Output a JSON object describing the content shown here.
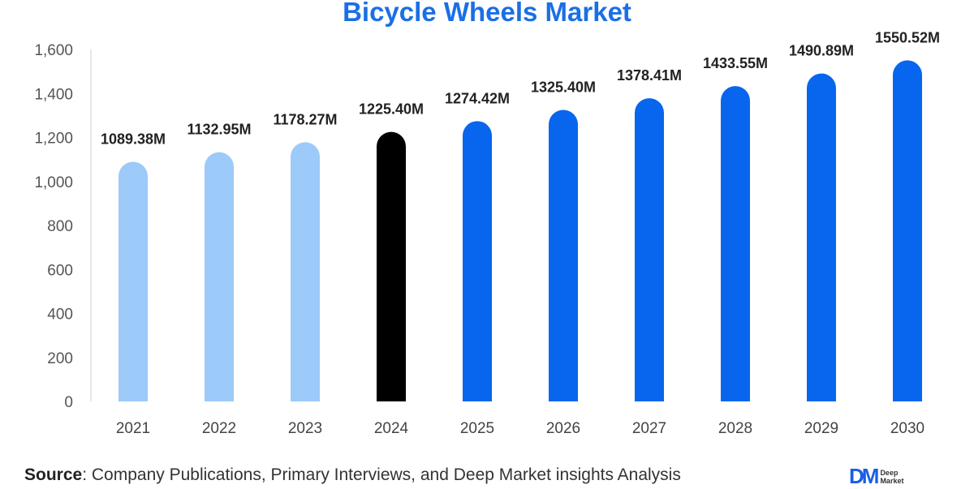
{
  "chart_data": {
    "type": "bar",
    "title": "Bicycle Wheels Market",
    "xlabel": "",
    "ylabel": "",
    "ylim": [
      0,
      1600
    ],
    "yticks": [
      "0",
      "200",
      "400",
      "600",
      "800",
      "1,000",
      "1,200",
      "1,400",
      "1,600"
    ],
    "categories": [
      "2021",
      "2022",
      "2023",
      "2024",
      "2025",
      "2026",
      "2027",
      "2028",
      "2029",
      "2030"
    ],
    "values": [
      1089.38,
      1132.95,
      1178.27,
      1225.4,
      1274.42,
      1325.4,
      1378.41,
      1433.55,
      1490.89,
      1550.52
    ],
    "data_labels": [
      "1089.38M",
      "1132.95M",
      "1178.27M",
      "1225.40M",
      "1274.42M",
      "1325.40M",
      "1378.41M",
      "1433.55M",
      "1490.89M",
      "1550.52M"
    ],
    "bar_colors": [
      "#9ccaf9",
      "#9ccaf9",
      "#9ccaf9",
      "#000000",
      "#0866ee",
      "#0866ee",
      "#0866ee",
      "#0866ee",
      "#0866ee",
      "#0866ee"
    ],
    "grid": false,
    "legend": "none"
  },
  "source": {
    "label": "Source",
    "text": ": Company Publications, Primary Interviews, and Deep Market insights Analysis"
  },
  "logo": {
    "mark": "DM",
    "text1": "Deep",
    "text2": "Market"
  }
}
